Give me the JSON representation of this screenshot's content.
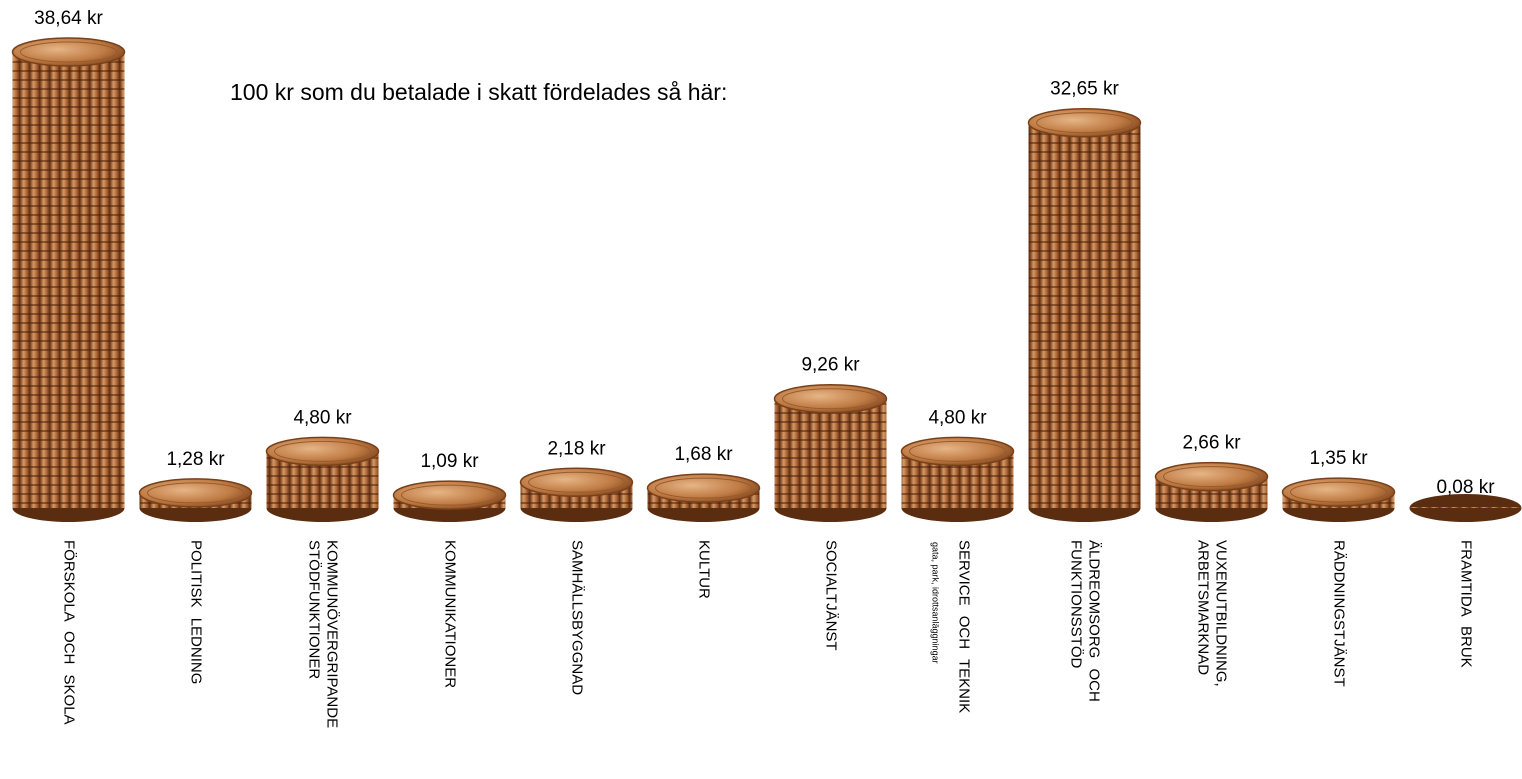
{
  "chart_data": {
    "type": "bar",
    "title": "100 kr som du betalade i skatt fördelades så här:",
    "categories": [
      "FÖRSKOLA OCH SKOLA",
      "POLITISK LEDNING",
      "KOMMUNÖVERGRIPANDE\nSTÖDFUNKTIONER",
      "KOMMUNIKATIONER",
      "SAMHÄLLSBYGGNAD",
      "KULTUR",
      "SOCIALTJÄNST",
      "SERVICE OCH TEKNIK",
      "ÄLDREOMSORG OCH\nFUNKTIONSSTÖD",
      "VUXENUTBILDNING,\nARBETSMARKNAD",
      "RÄDDNINGSTJÄNST",
      "FRAMTIDA BRUK"
    ],
    "category_notes": [
      null,
      null,
      null,
      null,
      null,
      null,
      null,
      "gata, park, idrottsanläggningar",
      null,
      null,
      null,
      null
    ],
    "values": [
      38.64,
      1.28,
      4.8,
      1.09,
      2.18,
      1.68,
      9.26,
      4.8,
      32.65,
      2.66,
      1.35,
      0.08
    ],
    "value_labels": [
      "38,64 kr",
      "1,28 kr",
      "4,80 kr",
      "1,09 kr",
      "2,18 kr",
      "1,68 kr",
      "9,26 kr",
      "4,80 kr",
      "32,65 kr",
      "2,66 kr",
      "1,35 kr",
      "0,08 kr"
    ],
    "color": "#b8733f"
  }
}
